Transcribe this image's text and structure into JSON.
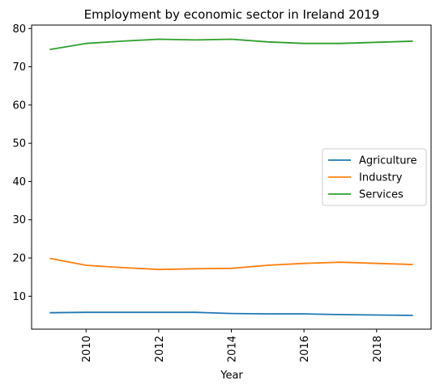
{
  "chart_data": {
    "type": "line",
    "title": "Employment by economic sector in Ireland 2019",
    "xlabel": "Year",
    "ylabel": "",
    "x": [
      2009,
      2010,
      2011,
      2012,
      2013,
      2014,
      2015,
      2016,
      2017,
      2018,
      2019
    ],
    "xlim": [
      2008.5,
      2019.5
    ],
    "ylim": [
      1.4,
      80.9
    ],
    "xticks": [
      2010,
      2012,
      2014,
      2016,
      2018
    ],
    "yticks": [
      10,
      20,
      30,
      40,
      50,
      60,
      70,
      80
    ],
    "grid": false,
    "legend_position": "center-right",
    "series": [
      {
        "name": "Agriculture",
        "color": "#1f77b4",
        "values": [
          5.7,
          5.8,
          5.8,
          5.8,
          5.8,
          5.5,
          5.4,
          5.4,
          5.2,
          5.1,
          5.0
        ]
      },
      {
        "name": "Industry",
        "color": "#ff7f0e",
        "values": [
          19.9,
          18.1,
          17.5,
          17.0,
          17.2,
          17.3,
          18.1,
          18.6,
          18.9,
          18.6,
          18.3
        ]
      },
      {
        "name": "Services",
        "color": "#2ca02c",
        "values": [
          74.5,
          76.1,
          76.7,
          77.2,
          77.0,
          77.2,
          76.5,
          76.1,
          76.1,
          76.4,
          76.7
        ]
      }
    ]
  }
}
